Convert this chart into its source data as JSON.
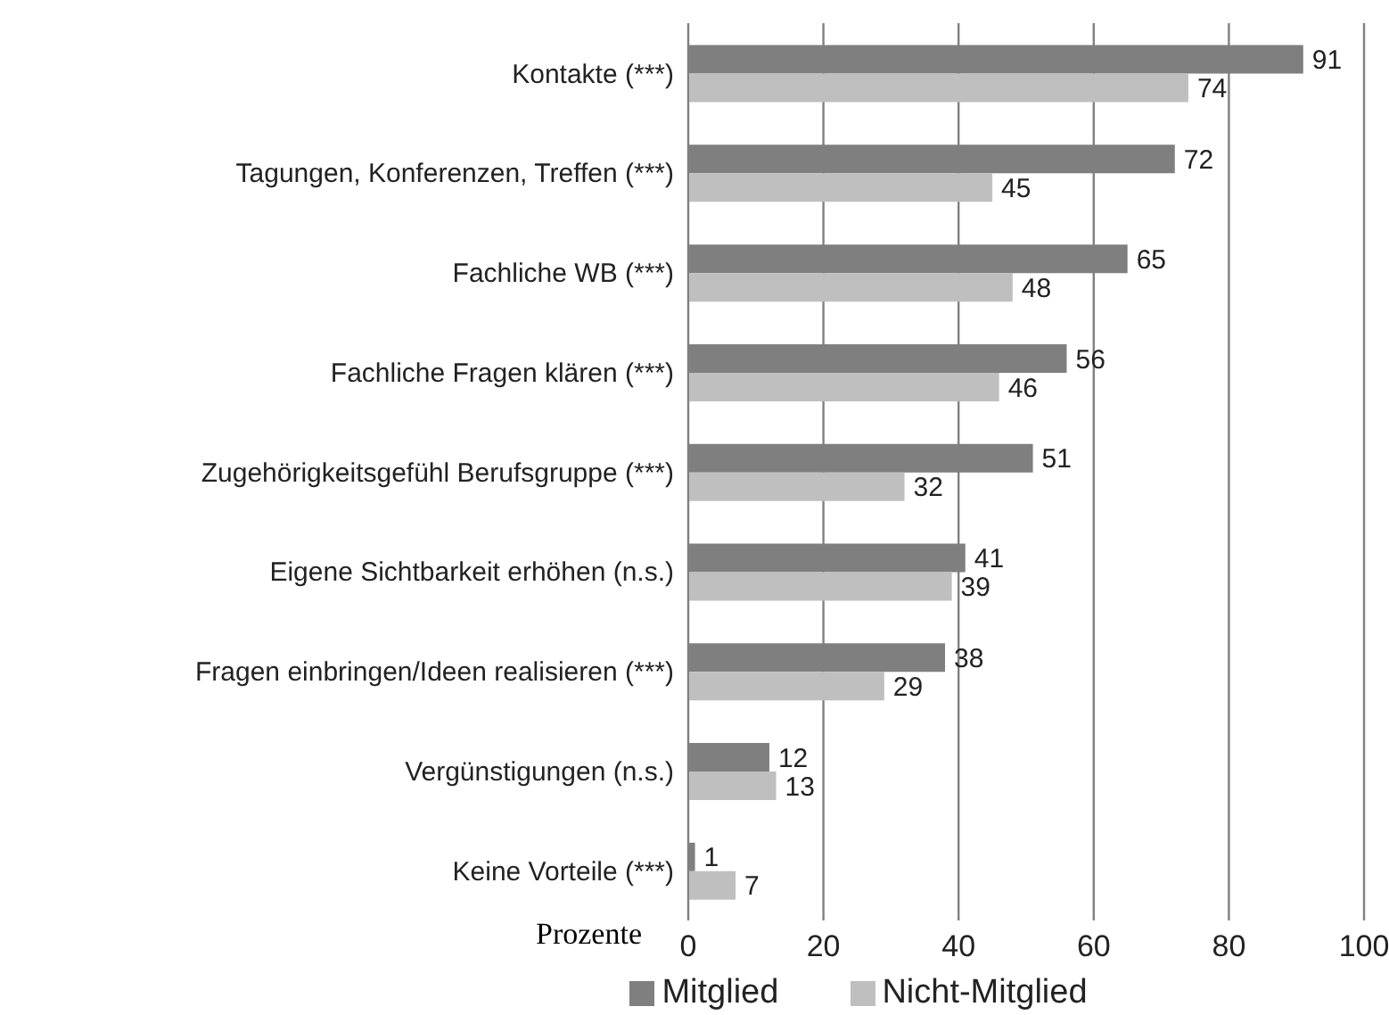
{
  "chart_data": {
    "type": "bar",
    "orientation": "horizontal",
    "xlabel": "Prozente",
    "categories": [
      "Kontakte  (***)",
      "Tagungen, Konferenzen, Treffen  (***)",
      "Fachliche WB  (***)",
      "Fachliche Fragen klären  (***)",
      "Zugehörigkeitsgefühl Berufsgruppe  (***)",
      "Eigene Sichtbarkeit erhöhen (n.s.)",
      "Fragen einbringen/Ideen realisieren (***)",
      "Vergünstigungen (n.s.)",
      "Keine Vorteile  (***)"
    ],
    "series": [
      {
        "name": "Mitglied",
        "color": "#7f7f7f",
        "values": [
          91,
          72,
          65,
          56,
          51,
          41,
          38,
          12,
          1
        ]
      },
      {
        "name": "Nicht-Mitglied",
        "color": "#bfbfbf",
        "values": [
          74,
          45,
          48,
          46,
          32,
          39,
          29,
          13,
          7
        ]
      }
    ],
    "xlim": [
      0,
      100
    ],
    "xticks": [
      0,
      20,
      40,
      60,
      80,
      100
    ],
    "grid": "x",
    "legend": "bottom",
    "data_labels": true
  }
}
